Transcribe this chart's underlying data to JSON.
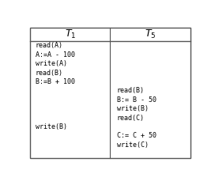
{
  "col1_header": "$T_1$",
  "col2_header": "$T_5$",
  "col1_ops": [
    {
      "text": "read(A)",
      "row": 1
    },
    {
      "text": "A:=A - 100",
      "row": 2
    },
    {
      "text": "write(A)",
      "row": 3
    },
    {
      "text": "read(B)",
      "row": 4
    },
    {
      "text": "B:=B + 100",
      "row": 5
    },
    {
      "text": "write(B)",
      "row": 10
    }
  ],
  "col2_ops": [
    {
      "text": "read(B)",
      "row": 6
    },
    {
      "text": "B:= B - 50",
      "row": 7
    },
    {
      "text": "write(B)",
      "row": 8
    },
    {
      "text": "read(C)",
      "row": 9
    },
    {
      "text": "C:= C + 50",
      "row": 11
    },
    {
      "text": "write(C)",
      "row": 12
    }
  ],
  "total_rows": 13,
  "header_bg": "#ffffff",
  "bg_color": "#ffffff",
  "border_color": "#555555",
  "font_color": "#000000",
  "font_size": 6.0,
  "header_font_size": 9,
  "col_split": 0.5
}
